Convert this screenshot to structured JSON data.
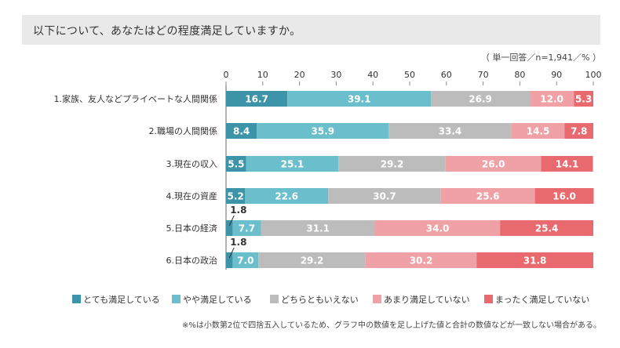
{
  "header": {
    "title": "以下について、あなたはどの程度満足していますか。",
    "note": "（ 単一回答／n=1,941／% ）"
  },
  "footnote": "※%は小数第2位で四捨五入しているため、グラフ中の数値を足し上げた値と合計の数値などが一致しない場合がある。",
  "chart_data": {
    "type": "bar",
    "orientation": "horizontal",
    "stacked": true,
    "title": "以下について、あなたはどの程度満足していますか。",
    "xlim": [
      0,
      100
    ],
    "xticks": [
      "0",
      "10",
      "20",
      "30",
      "40",
      "50",
      "60",
      "70",
      "80",
      "90",
      "100"
    ],
    "categories": [
      "1.家族、友人などプライベートな人間関係",
      "2.職場の人間関係",
      "3.現在の収入",
      "4.現在の資産",
      "5.日本の経済",
      "6.日本の政治"
    ],
    "series": [
      {
        "name": "とても満足している",
        "color": "#3d93a7",
        "values": [
          16.7,
          8.4,
          5.5,
          5.2,
          1.8,
          1.8
        ],
        "labels": [
          "16.7",
          "8.4",
          "5.5",
          "5.2",
          "1.8",
          "1.8"
        ]
      },
      {
        "name": "やや満足している",
        "color": "#6bbfcc",
        "values": [
          39.1,
          35.9,
          25.1,
          22.6,
          7.7,
          7.0
        ],
        "labels": [
          "39.1",
          "35.9",
          "25.1",
          "22.6",
          "7.7",
          "7.0"
        ]
      },
      {
        "name": "どちらともいえない",
        "color": "#bcbcbc",
        "values": [
          26.9,
          33.4,
          29.2,
          30.7,
          31.1,
          29.2
        ],
        "labels": [
          "26.9",
          "33.4",
          "29.2",
          "30.7",
          "31.1",
          "29.2"
        ]
      },
      {
        "name": "あまり満足していない",
        "color": "#f0a1a6",
        "values": [
          12.0,
          14.5,
          26.0,
          25.6,
          34.0,
          30.2
        ],
        "labels": [
          "12.0",
          "14.5",
          "26.0",
          "25.6",
          "34.0",
          "30.2"
        ]
      },
      {
        "name": "まったく満足していない",
        "color": "#e86a6f",
        "values": [
          5.3,
          7.8,
          14.1,
          16.0,
          25.4,
          31.8
        ],
        "labels": [
          "5.3",
          "7.8",
          "14.1",
          "16.0",
          "25.4",
          "31.8"
        ]
      }
    ],
    "legend_position": "bottom"
  }
}
